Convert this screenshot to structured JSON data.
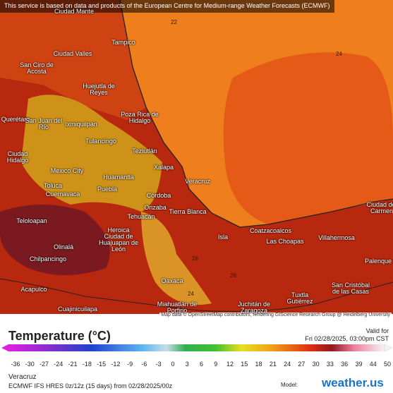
{
  "notice": "This service is based on data and products of the European Centre for Medium-range Weather Forecasts (ECMWF)",
  "cities": [
    "Ciudad Mante",
    "Tampico",
    "Ciudad Valles",
    "San Ciro de Acosta",
    "Huejutla de Reyes",
    "Poza Rica de Hidalgo",
    "Querétaro",
    "San Juan del Río",
    "Ixmiquilpan",
    "Tulancingo",
    "Teziutlán",
    "Xalapa",
    "Ciudad Hidalgo",
    "Mexico City",
    "Huamantla",
    "Toluca",
    "Cuernavaca",
    "Puebla",
    "Veracruz",
    "Córdoba",
    "Orizaba",
    "Tehuacán",
    "Tierra Blanca",
    "Teloloapan",
    "Ciudad del Carmen",
    "Coatzacoalcos",
    "Heroica Ciudad de Huajuapan de León",
    "Isla",
    "Las Choapas",
    "Villahermosa",
    "Olinalá",
    "Chilpancingo",
    "Palenque",
    "Oaxaca",
    "Acapulco",
    "Tuxtla Gutiérrez",
    "San Cristóbal de las Casas",
    "Miahuatlán de Porfirio",
    "Juchitán de Zaragoza",
    "Cuajinicuilapa"
  ],
  "contours": [
    "22",
    "24",
    "26",
    "28",
    "24"
  ],
  "attribution": "Map data © OpenStreetMap contributors, rendering GIScience Research Group @ Heidelberg University",
  "legend": {
    "title": "Temperature (°C)",
    "ticks": [
      -36,
      -30,
      -27,
      -24,
      -21,
      -18,
      -15,
      -12,
      -9,
      -6,
      -3,
      0,
      3,
      6,
      9,
      12,
      15,
      18,
      21,
      24,
      27,
      30,
      33,
      36,
      39,
      44,
      50
    ]
  },
  "valid": {
    "label": "Valid for",
    "time": "Fri 02/28/2025, 03:00pm CST"
  },
  "footer": {
    "location": "Veracruz",
    "model_run": "ECMWF IFS HRES 0z/12z (15 days) from 02/28/2025/00z",
    "model_label": "Model:",
    "brand": "weather.us"
  }
}
